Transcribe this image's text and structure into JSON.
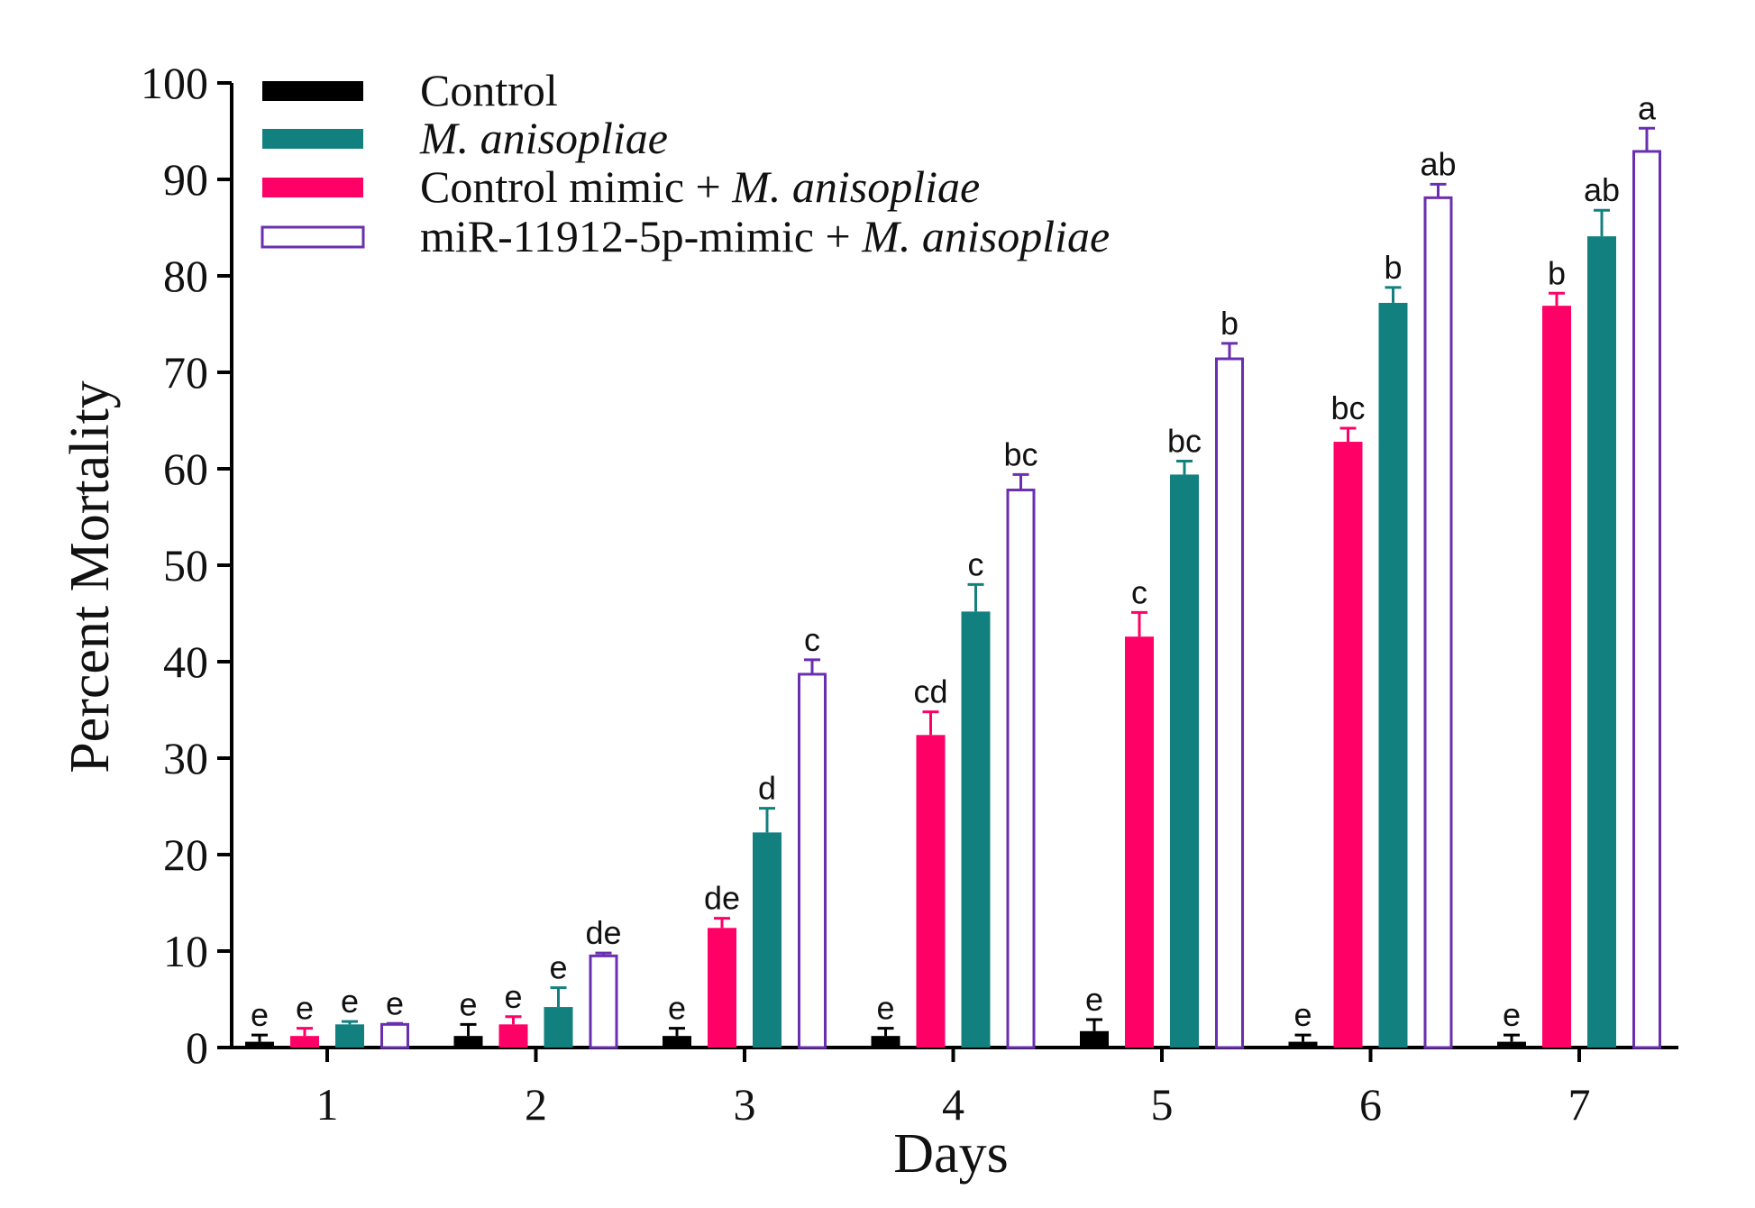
{
  "chart_data": {
    "type": "bar",
    "title": "",
    "xlabel": "Days",
    "ylabel": "Percent Mortality",
    "ylim": [
      0,
      100
    ],
    "yticks": [
      0,
      10,
      20,
      30,
      40,
      50,
      60,
      70,
      80,
      90,
      100
    ],
    "categories": [
      "1",
      "2",
      "3",
      "4",
      "5",
      "6",
      "7"
    ],
    "grid": false,
    "legend_position": "top-left",
    "series": [
      {
        "name": "Control",
        "color": "#000000",
        "fill": "solid",
        "values": [
          0.6,
          1.2,
          1.2,
          1.2,
          1.7,
          0.6,
          0.6
        ],
        "errors": [
          0.7,
          1.2,
          0.8,
          0.8,
          1.2,
          0.7,
          0.7
        ],
        "labels": [
          "e",
          "e",
          "e",
          "e",
          "e",
          "e",
          "e"
        ]
      },
      {
        "name": "Control mimic + M. anisopliae",
        "color": "#FF0066",
        "fill": "solid",
        "values": [
          1.2,
          2.4,
          12.4,
          32.4,
          42.6,
          62.8,
          76.9
        ],
        "errors": [
          0.8,
          0.8,
          1.0,
          2.4,
          2.5,
          1.4,
          1.3
        ],
        "labels": [
          "e",
          "e",
          "de",
          "cd",
          "c",
          "bc",
          "b"
        ]
      },
      {
        "name": "M. anisopliae",
        "color": "#138080",
        "fill": "solid",
        "values": [
          2.4,
          4.2,
          22.3,
          45.2,
          59.4,
          77.2,
          84.1
        ],
        "errors": [
          0.3,
          2.0,
          2.5,
          2.8,
          1.4,
          1.6,
          2.7
        ],
        "labels": [
          "e",
          "e",
          "d",
          "c",
          "bc",
          "b",
          "ab"
        ]
      },
      {
        "name": "miR-11912-5p-mimic + M. anisopliae",
        "color": "#6A2FB0",
        "fill": "none",
        "values": [
          2.4,
          9.5,
          38.7,
          57.8,
          71.4,
          88.1,
          92.9
        ],
        "errors": [
          0.1,
          0.3,
          1.5,
          1.6,
          1.6,
          1.4,
          2.4
        ],
        "labels": [
          "e",
          "de",
          "c",
          "bc",
          "b",
          "ab",
          "a"
        ]
      }
    ],
    "legend": [
      {
        "series": 0,
        "parts": [
          {
            "text": "Control",
            "italic": false
          }
        ]
      },
      {
        "series": 2,
        "parts": [
          {
            "text": "M. anisopliae",
            "italic": true
          }
        ]
      },
      {
        "series": 1,
        "parts": [
          {
            "text": "Control mimic + ",
            "italic": false
          },
          {
            "text": "M. anisopliae",
            "italic": true
          }
        ]
      },
      {
        "series": 3,
        "parts": [
          {
            "text": "miR-11912-5p-mimic + ",
            "italic": false
          },
          {
            "text": "M. anisopliae",
            "italic": true
          }
        ]
      }
    ]
  }
}
